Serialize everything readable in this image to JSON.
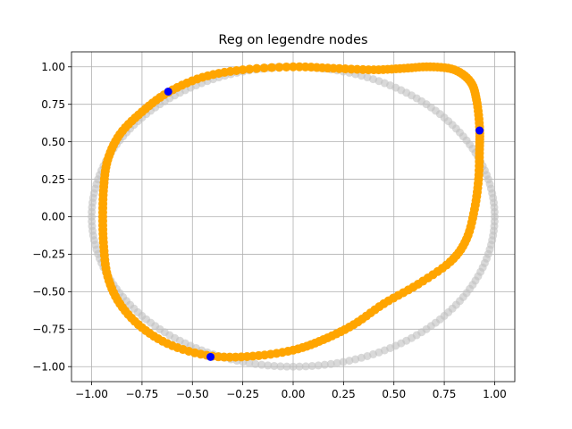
{
  "chart_data": {
    "type": "scatter",
    "title": "Reg on legendre nodes",
    "xlabel": "",
    "ylabel": "",
    "xlim": [
      -1.1,
      1.1
    ],
    "ylim": [
      -1.1,
      1.1
    ],
    "grid": true,
    "x_ticks": [
      "−1.00",
      "−0.75",
      "−0.50",
      "−0.25",
      "0.00",
      "0.25",
      "0.50",
      "0.75",
      "1.00"
    ],
    "y_ticks": [
      "1.00",
      "0.75",
      "0.50",
      "0.25",
      "0.00",
      "−0.25",
      "−0.50",
      "−0.75",
      "−1.00"
    ],
    "series": [
      {
        "role": "reference unit circle",
        "color": "#bfbfbf",
        "opacity": 0.6,
        "shape": "circle",
        "center": [
          0,
          0
        ],
        "radius": 1.0,
        "points": 200
      },
      {
        "role": "regularized curve",
        "color": "#ffa500",
        "points": [
          [
            0.68,
            1.0
          ],
          [
            0.8,
            0.98
          ],
          [
            0.88,
            0.9
          ],
          [
            0.91,
            0.78
          ],
          [
            0.925,
            0.6
          ],
          [
            0.925,
            0.45
          ],
          [
            0.92,
            0.25
          ],
          [
            0.9,
            0.05
          ],
          [
            0.86,
            -0.15
          ],
          [
            0.78,
            -0.3
          ],
          [
            0.62,
            -0.45
          ],
          [
            0.45,
            -0.58
          ],
          [
            0.3,
            -0.72
          ],
          [
            0.15,
            -0.82
          ],
          [
            0.0,
            -0.89
          ],
          [
            -0.2,
            -0.93
          ],
          [
            -0.4,
            -0.93
          ],
          [
            -0.6,
            -0.86
          ],
          [
            -0.75,
            -0.74
          ],
          [
            -0.86,
            -0.58
          ],
          [
            -0.92,
            -0.4
          ],
          [
            -0.94,
            -0.2
          ],
          [
            -0.945,
            0.0
          ],
          [
            -0.94,
            0.2
          ],
          [
            -0.92,
            0.38
          ],
          [
            -0.86,
            0.55
          ],
          [
            -0.75,
            0.7
          ],
          [
            -0.62,
            0.83
          ],
          [
            -0.45,
            0.93
          ],
          [
            -0.25,
            0.98
          ],
          [
            0.0,
            1.0
          ],
          [
            0.2,
            0.99
          ],
          [
            0.4,
            0.98
          ],
          [
            0.55,
            0.99
          ],
          [
            0.68,
            1.0
          ]
        ]
      },
      {
        "role": "nodes",
        "color": "#0000ff",
        "points": [
          [
            -0.62,
            0.835
          ],
          [
            0.925,
            0.575
          ],
          [
            -0.41,
            -0.935
          ]
        ]
      }
    ]
  }
}
